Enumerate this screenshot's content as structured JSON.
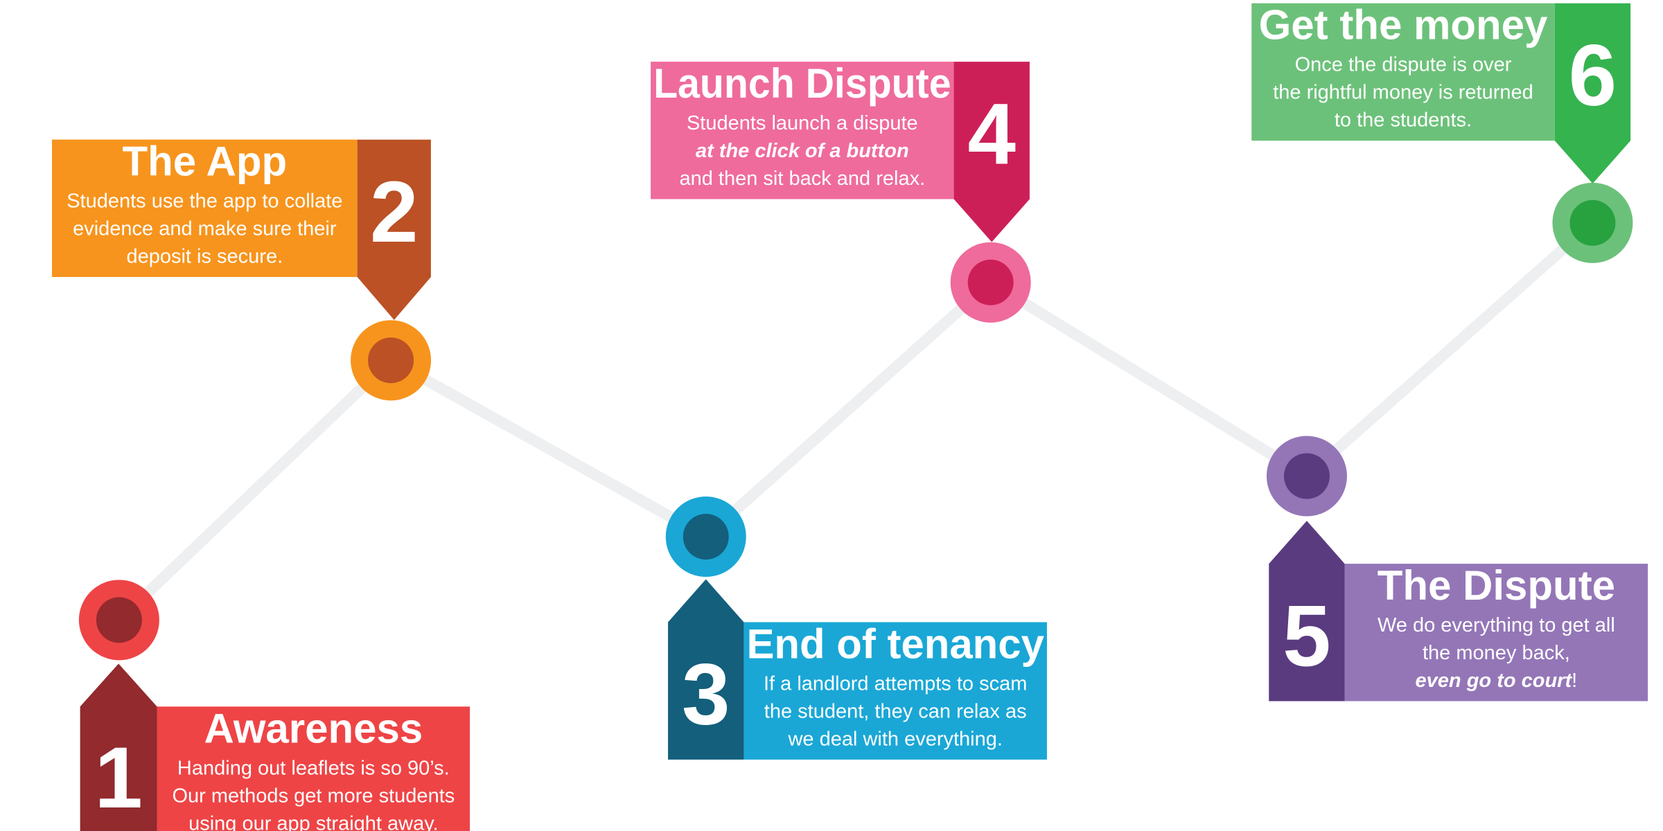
{
  "path_color": "#eeeff1",
  "steps": [
    {
      "number": "1",
      "title": "Awareness",
      "lines": [
        {
          "segments": [
            {
              "text": "Handing out leaflets is so 90’s."
            }
          ]
        },
        {
          "segments": [
            {
              "text": "Our methods get more students"
            }
          ]
        },
        {
          "segments": [
            {
              "text": "using our app straight away."
            }
          ]
        }
      ],
      "color_main": "#ee4446",
      "color_dark": "#922a2e",
      "color_node_inner": "#922a2e"
    },
    {
      "number": "2",
      "title": "The App",
      "lines": [
        {
          "segments": [
            {
              "text": "Students use the app to collate"
            }
          ]
        },
        {
          "segments": [
            {
              "text": "evidence and make sure their"
            }
          ]
        },
        {
          "segments": [
            {
              "text": "deposit is secure."
            }
          ]
        }
      ],
      "color_main": "#f7941d",
      "color_dark": "#bb5125",
      "color_node_inner": "#bb5125"
    },
    {
      "number": "3",
      "title": "End of tenancy",
      "lines": [
        {
          "segments": [
            {
              "text": "If a landlord attempts to scam"
            }
          ]
        },
        {
          "segments": [
            {
              "text": "the student, they can relax as"
            }
          ]
        },
        {
          "segments": [
            {
              "text": "we deal with everything."
            }
          ]
        }
      ],
      "color_main": "#1aa7d6",
      "color_dark": "#145f7c",
      "color_node_inner": "#145f7c"
    },
    {
      "number": "4",
      "title": "Launch Dispute",
      "lines": [
        {
          "segments": [
            {
              "text": "Students launch a dispute"
            }
          ]
        },
        {
          "segments": [
            {
              "text": "at the click of a button",
              "em": true
            }
          ]
        },
        {
          "segments": [
            {
              "text": "and then sit back and relax."
            }
          ]
        }
      ],
      "color_main": "#ef6b9c",
      "color_dark": "#cd1f57",
      "color_node_inner": "#cd1f57"
    },
    {
      "number": "5",
      "title": "The Dispute",
      "lines": [
        {
          "segments": [
            {
              "text": "We do everything to get all"
            }
          ]
        },
        {
          "segments": [
            {
              "text": "the money back,"
            }
          ]
        },
        {
          "segments": [
            {
              "text": "even go to court",
              "em": true
            },
            {
              "text": "!"
            }
          ]
        }
      ],
      "color_main": "#9476b7",
      "color_dark": "#5a3b7f",
      "color_node_inner": "#5a3b7f"
    },
    {
      "number": "6",
      "title": "Get the money",
      "lines": [
        {
          "segments": [
            {
              "text": "Once the dispute is over"
            }
          ]
        },
        {
          "segments": [
            {
              "text": "the rightful money is returned"
            }
          ]
        },
        {
          "segments": [
            {
              "text": "to the students."
            }
          ]
        }
      ],
      "color_main": "#6cc17a",
      "color_dark": "#35b34f",
      "color_node_inner": "#27a23f"
    }
  ]
}
